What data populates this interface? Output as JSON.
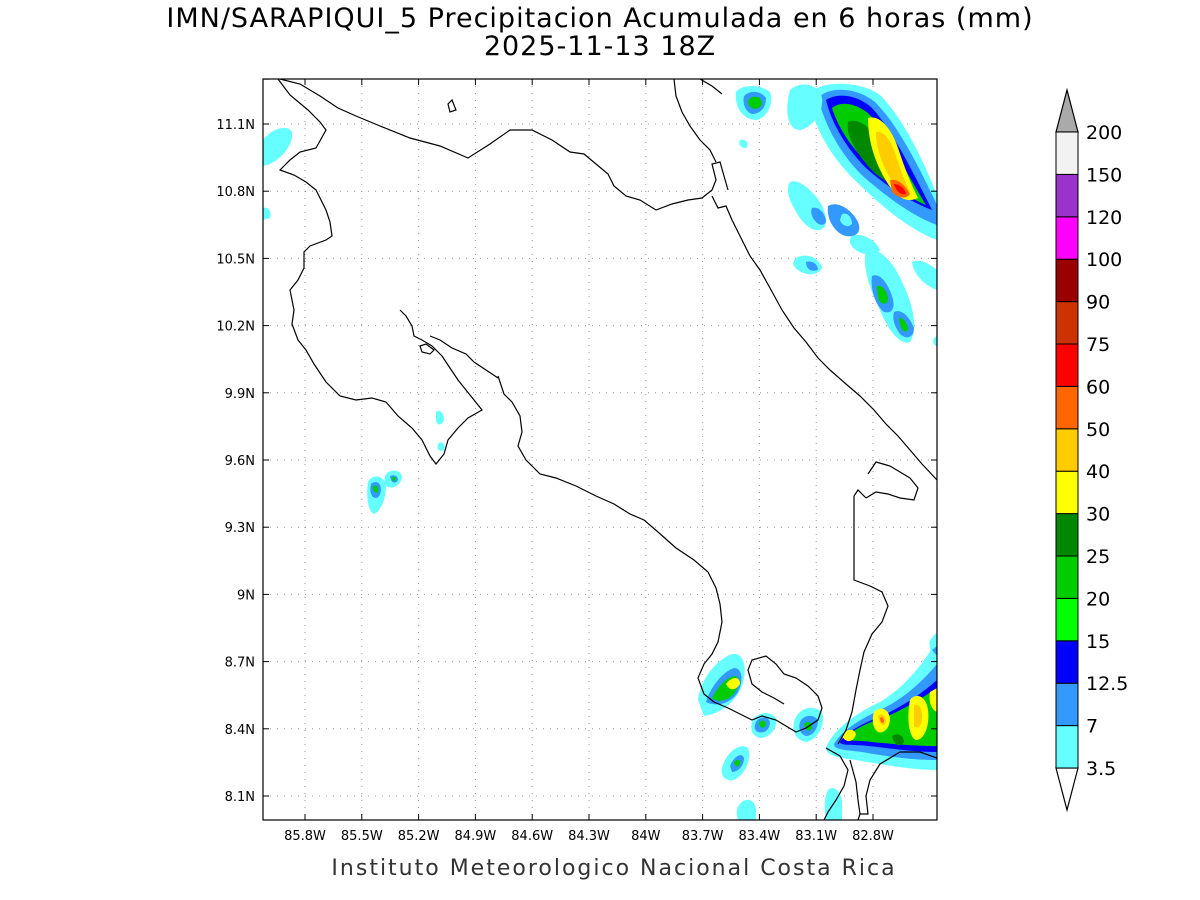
{
  "title": {
    "line1": "IMN/SARAPIQUI_5 Precipitacion Acumulada en 6 horas (mm)",
    "line2": "2025-11-13 18Z"
  },
  "credit": "Instituto Meteorologico Nacional Costa Rica",
  "map": {
    "lon_labels": [
      "85.8W",
      "85.5W",
      "85.2W",
      "84.9W",
      "84.6W",
      "84.3W",
      "84W",
      "83.7W",
      "83.4W",
      "83.1W",
      "82.8W"
    ],
    "lat_labels": [
      "11.1N",
      "10.8N",
      "10.5N",
      "10.2N",
      "9.9N",
      "9.6N",
      "9.3N",
      "9N",
      "8.7N",
      "8.4N",
      "8.1N"
    ],
    "grid": true
  },
  "colorbar": {
    "levels": [
      "3.5",
      "7",
      "12.5",
      "15",
      "20",
      "25",
      "30",
      "40",
      "50",
      "60",
      "75",
      "90",
      "100",
      "120",
      "150",
      "200"
    ],
    "colors": [
      "#ffffff",
      "#66ffff",
      "#3399ff",
      "#0000ff",
      "#00ff00",
      "#00cc00",
      "#008800",
      "#ffff00",
      "#ffcc00",
      "#ff6600",
      "#ff0000",
      "#cc3300",
      "#990000",
      "#ff00ff",
      "#9933cc",
      "#f2f2f2",
      "#aaaaaa"
    ]
  }
}
